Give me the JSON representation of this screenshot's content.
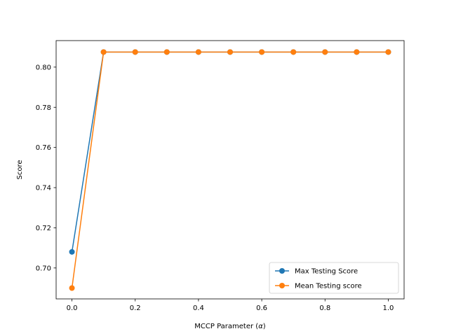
{
  "chart_data": {
    "type": "line",
    "xlabel": "MCCP Parameter (α)",
    "xlabel_main": "MCCP Parameter (",
    "xlabel_symbol": "α",
    "xlabel_end": ")",
    "ylabel": "Score",
    "xlim": [
      -0.05,
      1.05
    ],
    "ylim": [
      0.6846,
      0.8132
    ],
    "x_ticks": [
      0.0,
      0.2,
      0.4,
      0.6,
      0.8,
      1.0
    ],
    "x_tick_labels": [
      "0.0",
      "0.2",
      "0.4",
      "0.6",
      "0.8",
      "1.0"
    ],
    "y_ticks": [
      0.7,
      0.72,
      0.74,
      0.76,
      0.78,
      0.8
    ],
    "y_tick_labels": [
      "0.70",
      "0.72",
      "0.74",
      "0.76",
      "0.78",
      "0.80"
    ],
    "grid": false,
    "legend_position": "lower-right",
    "x": [
      0.0,
      0.1,
      0.2,
      0.3,
      0.4,
      0.5,
      0.6,
      0.7,
      0.8,
      0.9,
      1.0
    ],
    "series": [
      {
        "name": "Max Testing Score",
        "color": "#1f77b4",
        "values": [
          0.708,
          0.8075,
          0.8075,
          0.8075,
          0.8075,
          0.8075,
          0.8075,
          0.8075,
          0.8075,
          0.8075,
          0.8075
        ]
      },
      {
        "name": "Mean Testing score",
        "color": "#ff7f0e",
        "values": [
          0.69,
          0.8075,
          0.8075,
          0.8075,
          0.8075,
          0.8075,
          0.8075,
          0.8075,
          0.8075,
          0.8075,
          0.8075
        ]
      }
    ]
  }
}
